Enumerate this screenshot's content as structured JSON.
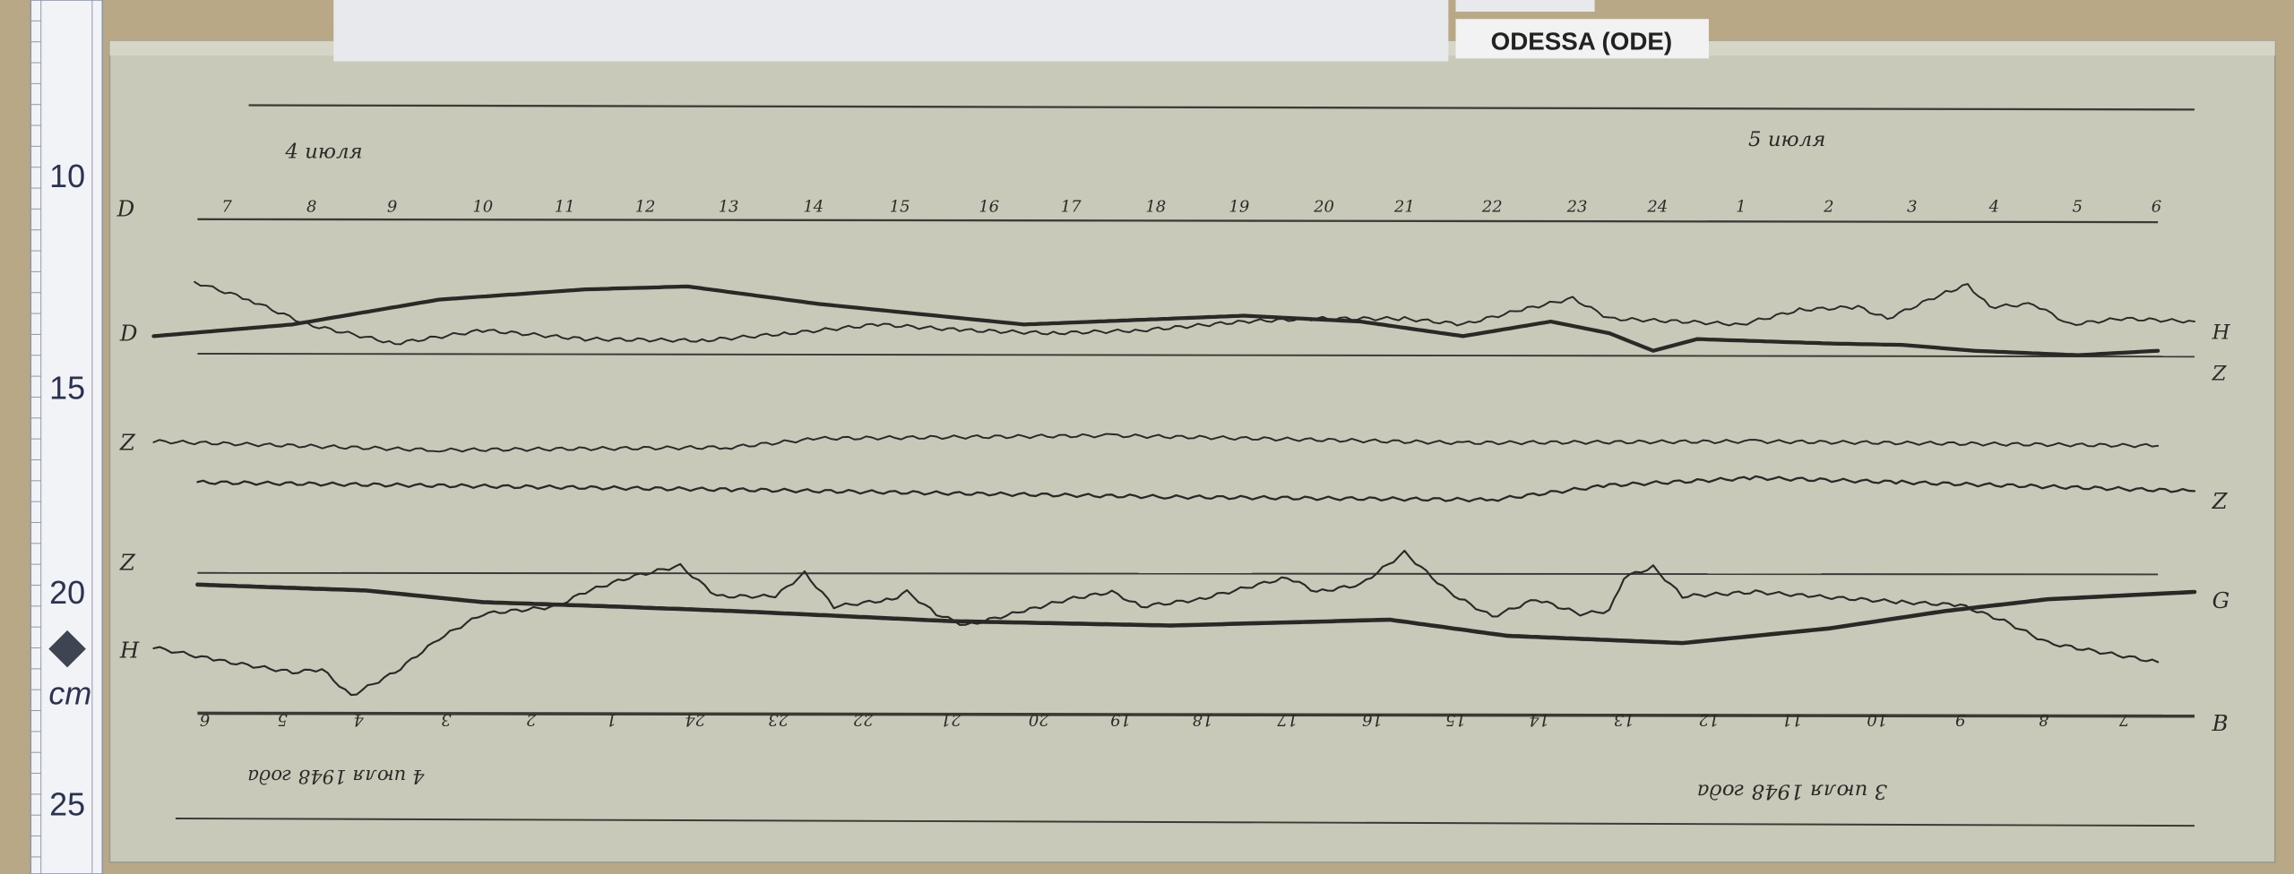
{
  "station_label": "ODESSA (ODE)",
  "ruler": {
    "marks": [
      "10",
      "15",
      "20",
      "25"
    ],
    "unit": "cm"
  },
  "dates_top": {
    "left": "4 июля",
    "right": "5 июля"
  },
  "dates_bottom": {
    "left": "4 июля 1948 года",
    "right": "3 июля 1948 года"
  },
  "hours_top": [
    "7",
    "8",
    "9",
    "10",
    "11",
    "12",
    "13",
    "14",
    "15",
    "16",
    "17",
    "18",
    "19",
    "20",
    "21",
    "22",
    "23",
    "24",
    "1",
    "2",
    "3",
    "4",
    "5",
    "6"
  ],
  "hours_bottom": [
    "6",
    "5",
    "4",
    "3",
    "2",
    "1",
    "24",
    "23",
    "22",
    "21",
    "20",
    "19",
    "18",
    "17",
    "16",
    "15",
    "14",
    "13",
    "12",
    "11",
    "10",
    "9",
    "8",
    "7"
  ],
  "trace_labels": {
    "d_top": "D",
    "d": "D",
    "z_left": "Z",
    "z_right": "Z",
    "z2": "Z",
    "h": "H",
    "g": "G",
    "right_top": "H",
    "right_d": "Z",
    "bottom_right": "B"
  },
  "colors": {
    "paper": "#c9c9b9",
    "wall": "#b9a886",
    "ink": "#2a2927",
    "ruler": "#f1f3f6"
  }
}
